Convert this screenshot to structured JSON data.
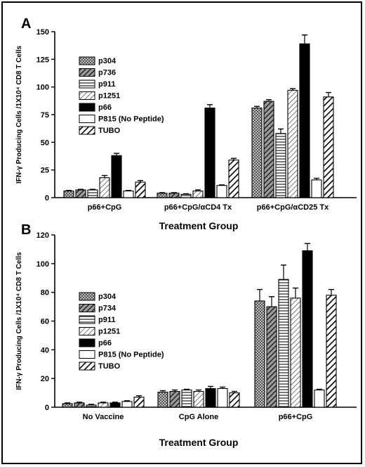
{
  "chart_data": [
    {
      "panel": "A",
      "type": "bar",
      "xlabel": "Treatment Group",
      "ylabel": "IFN-γ Producing Cells /1X10⁴ CD8 T Cells",
      "ylim": [
        0,
        150
      ],
      "yticks": [
        0,
        25,
        50,
        75,
        100,
        125,
        150
      ],
      "categories": [
        "p66+CpG",
        "p66+CpG/αCD4 Tx",
        "p66+CpG/αCD25 Tx"
      ],
      "series": [
        {
          "name": "p304",
          "values": [
            6,
            4,
            81
          ],
          "errors": [
            0.5,
            0.5,
            1.5
          ]
        },
        {
          "name": "p736",
          "values": [
            7,
            4,
            87
          ],
          "errors": [
            0.5,
            0.5,
            1.5
          ]
        },
        {
          "name": "p911",
          "values": [
            7,
            3,
            58
          ],
          "errors": [
            0.5,
            0.5,
            4
          ]
        },
        {
          "name": "p1251",
          "values": [
            18,
            6,
            97
          ],
          "errors": [
            2,
            1,
            1.5
          ]
        },
        {
          "name": "p66",
          "values": [
            38,
            81,
            139
          ],
          "errors": [
            2,
            3,
            8
          ]
        },
        {
          "name": "P815 (No Peptide)",
          "values": [
            6,
            11,
            16
          ],
          "errors": [
            0.5,
            0.5,
            1.5
          ]
        },
        {
          "name": "TUBO",
          "values": [
            14,
            34,
            91
          ],
          "errors": [
            1.5,
            1.5,
            4
          ]
        }
      ]
    },
    {
      "panel": "B",
      "type": "bar",
      "xlabel": "Treatment Group",
      "ylabel": "IFN-γ Producing Cells /1X10⁴ CD8 T Cells",
      "ylim": [
        0,
        120
      ],
      "yticks": [
        0,
        20,
        40,
        60,
        80,
        100,
        120
      ],
      "categories": [
        "No Vaccine",
        "CpG Alone",
        "p66+CpG"
      ],
      "series": [
        {
          "name": "p304",
          "values": [
            2.5,
            10.5,
            74
          ],
          "errors": [
            0.5,
            1,
            8
          ]
        },
        {
          "name": "p734",
          "values": [
            3,
            11,
            70
          ],
          "errors": [
            0.5,
            1,
            7
          ]
        },
        {
          "name": "p911",
          "values": [
            1.5,
            12,
            89
          ],
          "errors": [
            0.5,
            0.5,
            10
          ]
        },
        {
          "name": "p1251",
          "values": [
            3,
            11,
            76
          ],
          "errors": [
            0.5,
            1,
            7
          ]
        },
        {
          "name": "p66",
          "values": [
            3,
            13,
            109
          ],
          "errors": [
            0.5,
            1.5,
            5
          ]
        },
        {
          "name": "P815 (No Peptide)",
          "values": [
            4,
            13,
            12
          ],
          "errors": [
            0.5,
            1,
            0.5
          ]
        },
        {
          "name": "TUBO",
          "values": [
            7,
            10,
            78
          ],
          "errors": [
            1,
            1,
            4
          ]
        }
      ]
    }
  ],
  "style": {
    "patterns": [
      "checker",
      "diag-dense",
      "hlines",
      "diag-light",
      "solid-black",
      "white",
      "diag-thick"
    ]
  }
}
